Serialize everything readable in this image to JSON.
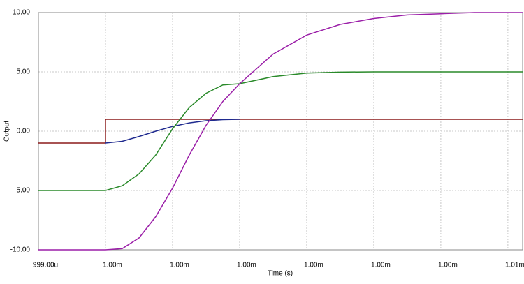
{
  "chart_data": {
    "type": "line",
    "xlabel": "Time (s)",
    "ylabel": "Output",
    "xlim": [
      0.999,
      1.00622
    ],
    "ylim": [
      -10,
      10
    ],
    "xticks": [
      {
        "value": 0.999,
        "label": "999.00u"
      },
      {
        "value": 1.0,
        "label": "1.00m"
      },
      {
        "value": 1.001,
        "label": "1.00m"
      },
      {
        "value": 1.002,
        "label": "1.00m"
      },
      {
        "value": 1.003,
        "label": "1.00m"
      },
      {
        "value": 1.004,
        "label": "1.00m"
      },
      {
        "value": 1.005,
        "label": "1.00m"
      },
      {
        "value": 1.006,
        "label": "1.01m"
      }
    ],
    "yticks": [
      {
        "value": 10,
        "label": "10.00"
      },
      {
        "value": 5,
        "label": "5.00"
      },
      {
        "value": 0,
        "label": "0.00"
      },
      {
        "value": -5,
        "label": "-5.00"
      },
      {
        "value": -10,
        "label": "-10.00"
      }
    ],
    "grid": true,
    "series": [
      {
        "color": "#8b1a1a",
        "x": [
          0.999,
          1.0,
          1.0,
          1.00622
        ],
        "values": [
          -1,
          -1,
          1,
          1
        ]
      },
      {
        "color": "#1f2a8f",
        "x": [
          1.0,
          1.00025,
          1.0005,
          1.00075,
          1.001,
          1.00125,
          1.0015,
          1.00175,
          1.002
        ],
        "values": [
          -1,
          -0.85,
          -0.45,
          0,
          0.4,
          0.7,
          0.88,
          0.97,
          1
        ]
      },
      {
        "color": "#2a8a2a",
        "x": [
          0.999,
          1.0,
          1.00025,
          1.0005,
          1.00075,
          1.001,
          1.00125,
          1.0015,
          1.00175,
          1.002,
          1.0025,
          1.003,
          1.0035,
          1.004,
          1.005,
          1.006,
          1.00622
        ],
        "values": [
          -5,
          -5,
          -4.6,
          -3.6,
          -2.0,
          0.2,
          2.0,
          3.2,
          3.9,
          4.0,
          4.6,
          4.9,
          4.98,
          5,
          5,
          5,
          5
        ]
      },
      {
        "color": "#9b1fa8",
        "x": [
          0.999,
          1.0,
          1.00025,
          1.0005,
          1.00075,
          1.001,
          1.00125,
          1.0015,
          1.00175,
          1.002,
          1.0025,
          1.003,
          1.0035,
          1.004,
          1.0045,
          1.005,
          1.0055,
          1.006,
          1.00622
        ],
        "values": [
          -10,
          -10,
          -9.9,
          -9.0,
          -7.2,
          -4.8,
          -2.0,
          0.5,
          2.5,
          4.0,
          6.5,
          8.1,
          9.0,
          9.5,
          9.8,
          9.9,
          10,
          10,
          10
        ]
      }
    ]
  }
}
